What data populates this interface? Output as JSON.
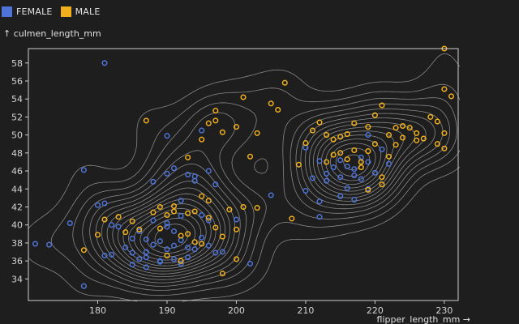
{
  "legend": {
    "items": [
      {
        "label": "FEMALE",
        "color": "#4f74d8"
      },
      {
        "label": "MALE",
        "color": "#f2b11c"
      }
    ]
  },
  "chart_data": {
    "type": "scatter",
    "title": "",
    "xlabel": "flipper_length_mm →",
    "ylabel": "↑ culmen_length_mm",
    "xlim": [
      170,
      232
    ],
    "ylim": [
      31.6,
      59.6
    ],
    "x_ticks": [
      180,
      190,
      200,
      210,
      220,
      230
    ],
    "y_ticks": [
      34,
      36,
      38,
      40,
      42,
      44,
      46,
      48,
      50,
      52,
      54,
      56,
      58
    ],
    "grid": false,
    "legend_position": "top-left",
    "overlay": "density-contours",
    "contour_color": "#9a9a9a",
    "series": [
      {
        "name": "FEMALE",
        "color": "#4f74d8",
        "points": [
          [
            171,
            37.9
          ],
          [
            173,
            37.8
          ],
          [
            176,
            40.2
          ],
          [
            178,
            46.1
          ],
          [
            178,
            33.2
          ],
          [
            181,
            58.0
          ],
          [
            180,
            42.2
          ],
          [
            181,
            42.4
          ],
          [
            181,
            36.6
          ],
          [
            182,
            36.7
          ],
          [
            182,
            40.0
          ],
          [
            183,
            39.8
          ],
          [
            184,
            37.5
          ],
          [
            185,
            36.9
          ],
          [
            185,
            38.5
          ],
          [
            185,
            35.6
          ],
          [
            186,
            36.2
          ],
          [
            186,
            39.3
          ],
          [
            187,
            37.0
          ],
          [
            187,
            35.3
          ],
          [
            187,
            36.4
          ],
          [
            187,
            38.4
          ],
          [
            188,
            40.5
          ],
          [
            188,
            37.8
          ],
          [
            188,
            44.8
          ],
          [
            189,
            36.0
          ],
          [
            189,
            38.2
          ],
          [
            189,
            35.9
          ],
          [
            190,
            37.3
          ],
          [
            190,
            40.2
          ],
          [
            190,
            39.8
          ],
          [
            190,
            45.7
          ],
          [
            190,
            49.9
          ],
          [
            191,
            36.2
          ],
          [
            191,
            37.7
          ],
          [
            191,
            39.3
          ],
          [
            191,
            46.3
          ],
          [
            192,
            38.3
          ],
          [
            192,
            35.7
          ],
          [
            192,
            41.0
          ],
          [
            192,
            42.7
          ],
          [
            193,
            37.5
          ],
          [
            193,
            45.6
          ],
          [
            193,
            36.4
          ],
          [
            194,
            37.3
          ],
          [
            194,
            44.9
          ],
          [
            194,
            45.4
          ],
          [
            195,
            38.6
          ],
          [
            195,
            41.1
          ],
          [
            195,
            50.5
          ],
          [
            196,
            46.0
          ],
          [
            196,
            40.5
          ],
          [
            196,
            37.7
          ],
          [
            197,
            44.5
          ],
          [
            197,
            36.9
          ],
          [
            198,
            37.0
          ],
          [
            200,
            40.6
          ],
          [
            202,
            35.7
          ],
          [
            205,
            43.3
          ],
          [
            210,
            48.6
          ],
          [
            210,
            43.8
          ],
          [
            211,
            45.2
          ],
          [
            212,
            47.1
          ],
          [
            212,
            42.6
          ],
          [
            213,
            45.7
          ],
          [
            213,
            44.9
          ],
          [
            214,
            46.4
          ],
          [
            215,
            45.3
          ],
          [
            215,
            47.2
          ],
          [
            215,
            43.2
          ],
          [
            216,
            46.5
          ],
          [
            216,
            44.1
          ],
          [
            217,
            45.5
          ],
          [
            217,
            46.2
          ],
          [
            217,
            42.8
          ],
          [
            218,
            45.1
          ],
          [
            218,
            47.5
          ],
          [
            219,
            47.0
          ],
          [
            219,
            50.0
          ],
          [
            220,
            45.8
          ],
          [
            221,
            48.4
          ],
          [
            212,
            40.9
          ],
          [
            222,
            46.8
          ],
          [
            219,
            44.0
          ]
        ]
      },
      {
        "name": "MALE",
        "color": "#f2b11c",
        "points": [
          [
            178,
            37.2
          ],
          [
            180,
            38.9
          ],
          [
            181,
            40.6
          ],
          [
            183,
            40.9
          ],
          [
            184,
            39.2
          ],
          [
            185,
            40.4
          ],
          [
            186,
            39.5
          ],
          [
            187,
            51.6
          ],
          [
            188,
            41.4
          ],
          [
            189,
            42.0
          ],
          [
            189,
            39.6
          ],
          [
            190,
            41.1
          ],
          [
            190,
            36.6
          ],
          [
            191,
            41.5
          ],
          [
            191,
            42.1
          ],
          [
            192,
            38.8
          ],
          [
            192,
            36.0
          ],
          [
            193,
            41.3
          ],
          [
            193,
            39.0
          ],
          [
            193,
            47.5
          ],
          [
            194,
            41.5
          ],
          [
            194,
            38.1
          ],
          [
            195,
            43.2
          ],
          [
            195,
            37.9
          ],
          [
            195,
            49.5
          ],
          [
            196,
            42.7
          ],
          [
            196,
            40.8
          ],
          [
            196,
            51.3
          ],
          [
            197,
            39.7
          ],
          [
            197,
            51.6
          ],
          [
            197,
            52.7
          ],
          [
            198,
            38.7
          ],
          [
            198,
            34.6
          ],
          [
            198,
            50.3
          ],
          [
            199,
            41.7
          ],
          [
            200,
            39.5
          ],
          [
            200,
            36.2
          ],
          [
            200,
            50.9
          ],
          [
            201,
            42.0
          ],
          [
            201,
            54.2
          ],
          [
            202,
            47.6
          ],
          [
            203,
            50.2
          ],
          [
            203,
            41.9
          ],
          [
            205,
            53.5
          ],
          [
            206,
            52.8
          ],
          [
            207,
            55.8
          ],
          [
            208,
            40.7
          ],
          [
            209,
            46.7
          ],
          [
            210,
            49.1
          ],
          [
            211,
            50.5
          ],
          [
            212,
            51.4
          ],
          [
            213,
            47.0
          ],
          [
            213,
            50.0
          ],
          [
            214,
            49.5
          ],
          [
            215,
            49.8
          ],
          [
            215,
            48.0
          ],
          [
            216,
            47.3
          ],
          [
            216,
            50.1
          ],
          [
            217,
            48.3
          ],
          [
            217,
            51.3
          ],
          [
            218,
            47.0
          ],
          [
            218,
            46.4
          ],
          [
            219,
            48.2
          ],
          [
            219,
            50.9
          ],
          [
            220,
            52.2
          ],
          [
            220,
            49.0
          ],
          [
            221,
            53.3
          ],
          [
            221,
            44.5
          ],
          [
            222,
            50.0
          ],
          [
            222,
            47.6
          ],
          [
            223,
            50.8
          ],
          [
            224,
            49.7
          ],
          [
            224,
            51.0
          ],
          [
            225,
            50.8
          ],
          [
            226,
            50.2
          ],
          [
            226,
            49.4
          ],
          [
            227,
            49.6
          ],
          [
            228,
            52.0
          ],
          [
            229,
            51.5
          ],
          [
            229,
            49.0
          ],
          [
            230,
            59.6
          ],
          [
            230,
            50.2
          ],
          [
            230,
            48.5
          ],
          [
            231,
            54.3
          ],
          [
            230,
            55.1
          ],
          [
            221,
            45.3
          ],
          [
            219,
            43.9
          ],
          [
            214,
            47.8
          ],
          [
            223,
            48.9
          ]
        ]
      }
    ]
  }
}
